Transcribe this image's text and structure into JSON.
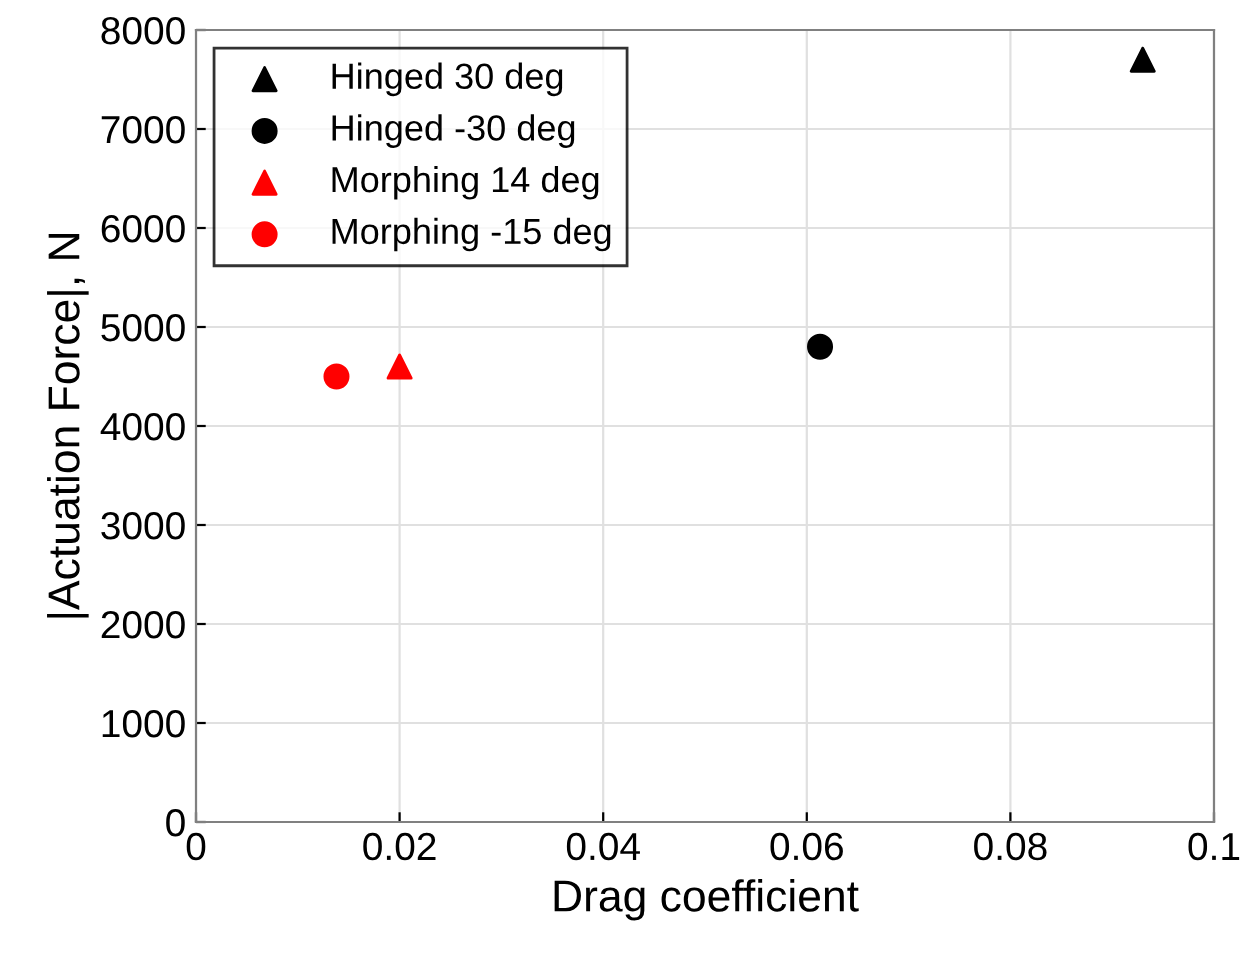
{
  "chart_data": {
    "type": "scatter",
    "xlabel": "Drag coefficient",
    "ylabel": "|Actuation Force|, N",
    "xlim": [
      0,
      0.1
    ],
    "xticks": [
      0,
      0.02,
      0.04,
      0.06,
      0.08,
      0.1
    ],
    "ylim": [
      0,
      8000
    ],
    "yticks": [
      0,
      1000,
      2000,
      3000,
      4000,
      5000,
      6000,
      7000,
      8000
    ],
    "grid": true,
    "legend": "top left",
    "series": [
      {
        "name": "Hinged 30 deg",
        "color": "#000000",
        "marker": "triangle",
        "x": [
          0.093
        ],
        "values": [
          7700
        ]
      },
      {
        "name": "Hinged -30 deg",
        "color": "#000000",
        "marker": "circle",
        "x": [
          0.0613
        ],
        "values": [
          4800
        ]
      },
      {
        "name": "Morphing 14 deg",
        "color": "#ff0000",
        "marker": "triangle",
        "x": [
          0.02
        ],
        "values": [
          4600
        ]
      },
      {
        "name": "Morphing -15 deg",
        "color": "#ff0000",
        "marker": "circle",
        "x": [
          0.0138
        ],
        "values": [
          4500
        ]
      }
    ]
  }
}
